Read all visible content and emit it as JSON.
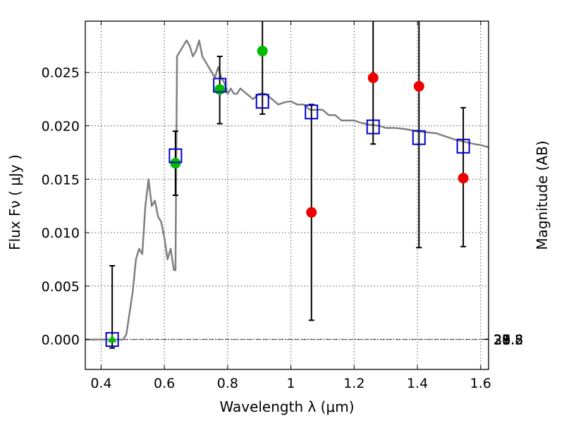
{
  "chart_data": {
    "type": "scatter",
    "title": "",
    "xlabel": "Wavelength  λ (μm)",
    "ylabel": "Flux  Fν  ( μJy )",
    "y2label": "Magnitude (AB)",
    "xlim": [
      0.35,
      1.625
    ],
    "ylim": [
      -0.0028,
      0.0298
    ],
    "xticks": [
      0.4,
      0.6,
      0.8,
      1.0,
      1.2,
      1.4,
      1.6
    ],
    "xtick_labels": [
      "0.4",
      "0.6",
      "0.8",
      "1",
      "1.2",
      "1.4",
      "1.6"
    ],
    "yticks": [
      0.0,
      0.005,
      0.01,
      0.015,
      0.02,
      0.025
    ],
    "ytick_labels": [
      "0.000",
      "0.005",
      "0.010",
      "0.015",
      "0.020",
      "0.025"
    ],
    "mag_ticks": [
      27.8,
      28,
      28.2,
      28.5,
      29,
      29.5,
      30,
      31
    ],
    "mag_tick_labels": [
      "27.8",
      "28",
      "28.2",
      "28.5",
      "29",
      "29.5",
      "30",
      "31"
    ],
    "grid": true,
    "colors": {
      "model": "#808080",
      "green": "#00bb00",
      "red": "#ee0000",
      "box": "#0000cc",
      "errorbar": "#000000"
    },
    "series": [
      {
        "kind": "model-sed-line",
        "x": [
          0.35,
          0.44,
          0.46,
          0.47,
          0.48,
          0.49,
          0.5,
          0.51,
          0.52,
          0.53,
          0.54,
          0.55,
          0.56,
          0.57,
          0.58,
          0.59,
          0.6,
          0.61,
          0.62,
          0.63,
          0.635,
          0.64,
          0.65,
          0.66,
          0.67,
          0.68,
          0.69,
          0.7,
          0.71,
          0.72,
          0.73,
          0.74,
          0.75,
          0.76,
          0.77,
          0.78,
          0.79,
          0.8,
          0.81,
          0.82,
          0.83,
          0.84,
          0.86,
          0.88,
          0.9,
          0.92,
          0.94,
          0.96,
          0.98,
          1.0,
          1.02,
          1.04,
          1.06,
          1.08,
          1.1,
          1.12,
          1.14,
          1.16,
          1.18,
          1.2,
          1.22,
          1.25,
          1.28,
          1.3,
          1.33,
          1.36,
          1.4,
          1.43,
          1.46,
          1.49,
          1.52,
          1.55,
          1.58,
          1.6,
          1.625
        ],
        "y": [
          0.0,
          0.0,
          0.0,
          0.0,
          0.0005,
          0.0025,
          0.0045,
          0.0075,
          0.0085,
          0.008,
          0.0125,
          0.015,
          0.0125,
          0.013,
          0.0115,
          0.011,
          0.0095,
          0.0075,
          0.0085,
          0.0065,
          0.0065,
          0.0265,
          0.027,
          0.0275,
          0.028,
          0.0275,
          0.0265,
          0.027,
          0.028,
          0.0265,
          0.026,
          0.0255,
          0.025,
          0.0245,
          0.0255,
          0.0245,
          0.024,
          0.023,
          0.0235,
          0.023,
          0.023,
          0.0235,
          0.023,
          0.0225,
          0.023,
          0.023,
          0.0225,
          0.022,
          0.0222,
          0.0223,
          0.022,
          0.022,
          0.0215,
          0.0215,
          0.0215,
          0.021,
          0.021,
          0.0205,
          0.0205,
          0.0205,
          0.0203,
          0.0201,
          0.02,
          0.0198,
          0.0198,
          0.0197,
          0.0195,
          0.0194,
          0.0193,
          0.019,
          0.0187,
          0.0185,
          0.0183,
          0.0182,
          0.018
        ]
      },
      {
        "kind": "green-circles",
        "x": [
          0.635,
          0.775,
          0.91
        ],
        "y": [
          0.0165,
          0.0234,
          0.027
        ]
      },
      {
        "kind": "green-triangle",
        "x": [
          0.435
        ],
        "y": [
          0.0
        ]
      },
      {
        "kind": "red-circles",
        "x": [
          1.065,
          1.26,
          1.405,
          1.545
        ],
        "y": [
          0.0119,
          0.0245,
          0.0237,
          0.0151
        ]
      },
      {
        "kind": "blue-squares",
        "x": [
          0.435,
          0.635,
          0.775,
          0.91,
          1.065,
          1.26,
          1.405,
          1.545
        ],
        "y": [
          0.0,
          0.0172,
          0.0238,
          0.0223,
          0.0213,
          0.0199,
          0.0189,
          0.0181
        ]
      },
      {
        "kind": "errorbars",
        "x": [
          0.435,
          0.635,
          0.775,
          0.91,
          1.065,
          1.26,
          1.405,
          1.545
        ],
        "low": [
          -0.0008,
          0.0135,
          0.0202,
          0.0211,
          0.0018,
          0.0183,
          0.0086,
          0.0087
        ],
        "high": [
          0.0069,
          0.0195,
          0.0265,
          0.0298,
          0.022,
          0.0298,
          0.0298,
          0.0217
        ]
      }
    ]
  }
}
